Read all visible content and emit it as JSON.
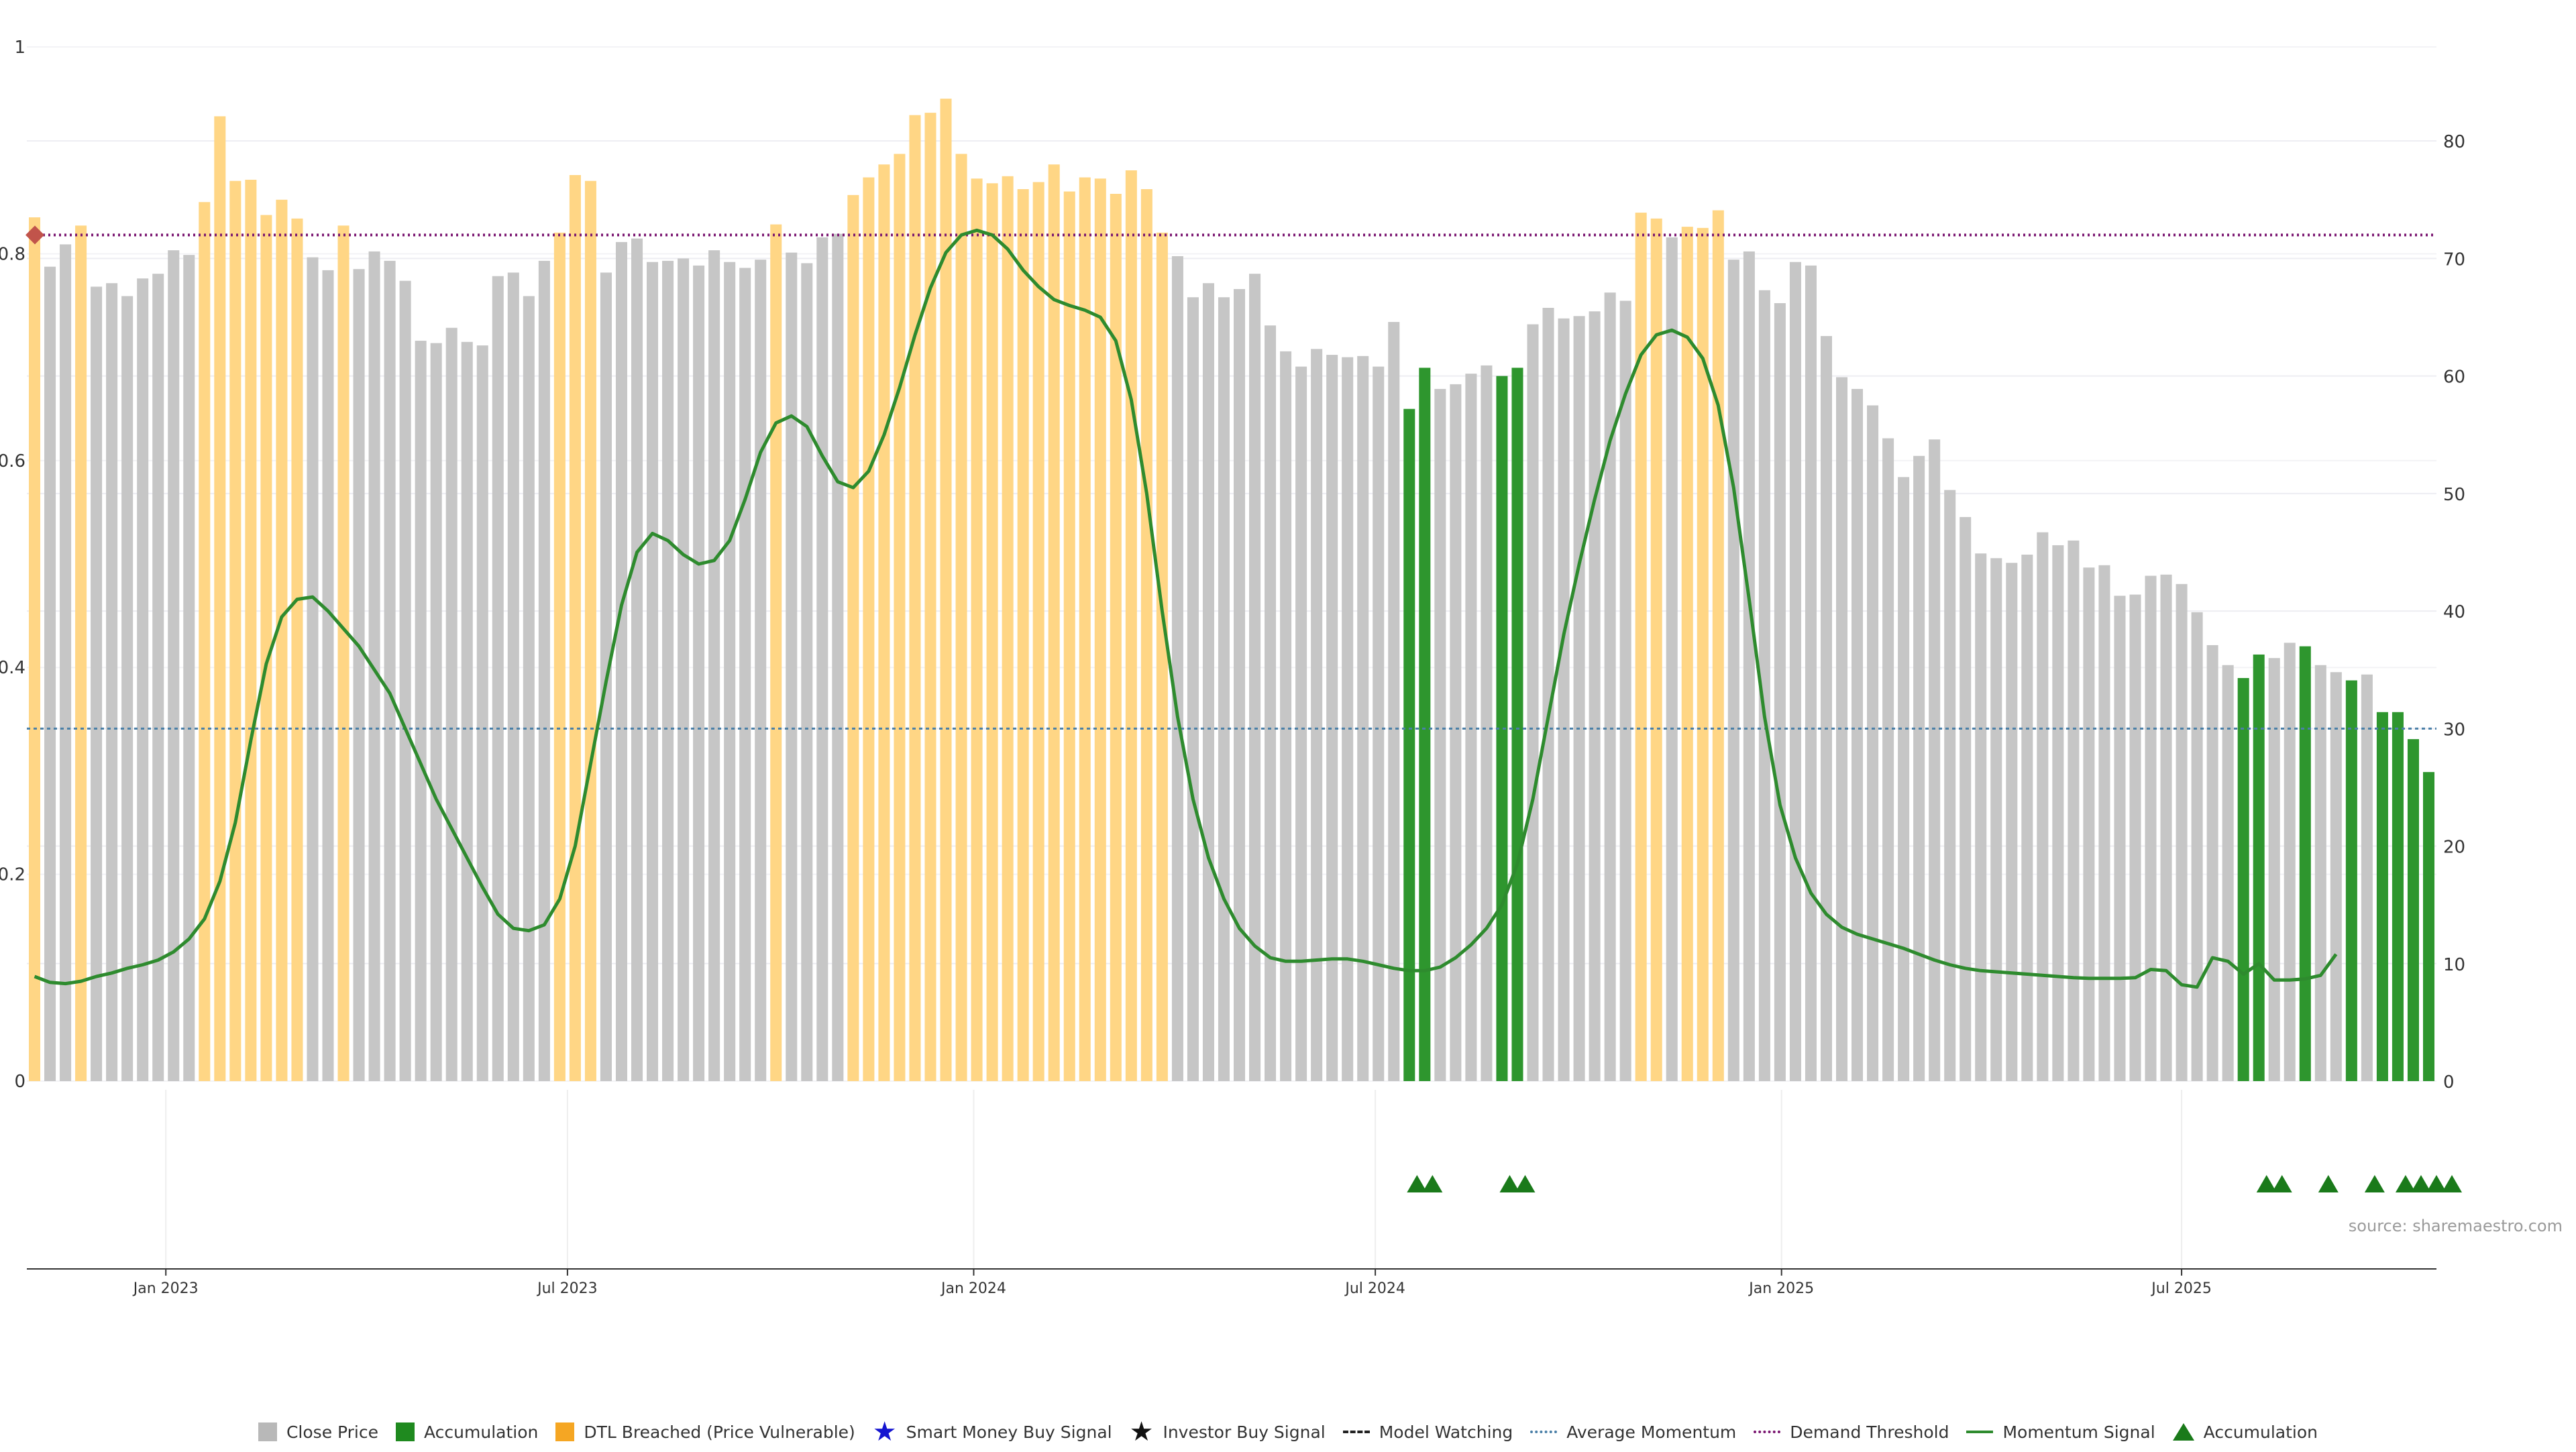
{
  "source": "source: sharemaestro.com",
  "colors": {
    "close": "#c6c6c6",
    "accumulation": "#2e962e",
    "dtl": "#ffd685",
    "momentum": "#2e8b2e",
    "avg_momentum": "#4a7fa7",
    "demand": "#7a1570",
    "marker": "#c1544b"
  },
  "legend": [
    {
      "kind": "square",
      "color": "#b8b8b8",
      "label": "Close Price"
    },
    {
      "kind": "square",
      "color": "#1f8a1f",
      "label": "Accumulation"
    },
    {
      "kind": "square",
      "color": "#f5a623",
      "label": "DTL Breached (Price Vulnerable)"
    },
    {
      "kind": "glyph",
      "glyph": "★",
      "color": "#1515d0",
      "label": "Smart Money Buy Signal"
    },
    {
      "kind": "glyph",
      "glyph": "★",
      "color": "#111111",
      "label": "Investor Buy Signal"
    },
    {
      "kind": "dash",
      "color": "#222222",
      "label": "Model Watching"
    },
    {
      "kind": "dot",
      "color": "#4a7fa7",
      "label": "Average Momentum"
    },
    {
      "kind": "dot",
      "color": "#7a1570",
      "label": "Demand Threshold"
    },
    {
      "kind": "solid",
      "color": "#2e8b2e",
      "label": "Momentum Signal"
    },
    {
      "kind": "triangle",
      "color": "#1a7a1a",
      "label": "Accumulation"
    }
  ],
  "chart_data": {
    "type": "bar",
    "left_axis": {
      "min": 0,
      "max": 1,
      "ticks": [
        "0",
        "0.2",
        "0.4",
        "0.6",
        "0.8",
        "1"
      ]
    },
    "right_axis": {
      "min": 0,
      "max": 88,
      "ticks": [
        "0",
        "10",
        "20",
        "30",
        "40",
        "50",
        "60",
        "70",
        "80"
      ]
    },
    "x_ticks": [
      {
        "index": 8.5,
        "label": "Jan 2023"
      },
      {
        "index": 34.5,
        "label": "Jul 2023"
      },
      {
        "index": 60.8,
        "label": "Jan 2024"
      },
      {
        "index": 86.8,
        "label": "Jul 2024"
      },
      {
        "index": 113.1,
        "label": "Jan 2025"
      },
      {
        "index": 139.0,
        "label": "Jul 2025"
      }
    ],
    "grid": true,
    "demand_threshold": 72,
    "average_momentum": 30,
    "bars": [
      {
        "v": 73.5,
        "s": "dtl"
      },
      {
        "v": 69.3,
        "s": "close"
      },
      {
        "v": 71.2,
        "s": "close"
      },
      {
        "v": 72.8,
        "s": "dtl"
      },
      {
        "v": 67.6,
        "s": "close"
      },
      {
        "v": 67.9,
        "s": "close"
      },
      {
        "v": 66.8,
        "s": "close"
      },
      {
        "v": 68.3,
        "s": "close"
      },
      {
        "v": 68.7,
        "s": "close"
      },
      {
        "v": 70.7,
        "s": "close"
      },
      {
        "v": 70.3,
        "s": "close"
      },
      {
        "v": 74.8,
        "s": "dtl"
      },
      {
        "v": 82.1,
        "s": "dtl"
      },
      {
        "v": 76.6,
        "s": "dtl"
      },
      {
        "v": 76.7,
        "s": "dtl"
      },
      {
        "v": 73.7,
        "s": "dtl"
      },
      {
        "v": 75.0,
        "s": "dtl"
      },
      {
        "v": 73.4,
        "s": "dtl"
      },
      {
        "v": 70.1,
        "s": "close"
      },
      {
        "v": 69.0,
        "s": "close"
      },
      {
        "v": 72.8,
        "s": "dtl"
      },
      {
        "v": 69.1,
        "s": "close"
      },
      {
        "v": 70.6,
        "s": "close"
      },
      {
        "v": 69.8,
        "s": "close"
      },
      {
        "v": 68.1,
        "s": "close"
      },
      {
        "v": 63.0,
        "s": "close"
      },
      {
        "v": 62.8,
        "s": "close"
      },
      {
        "v": 64.1,
        "s": "close"
      },
      {
        "v": 62.9,
        "s": "close"
      },
      {
        "v": 62.6,
        "s": "close"
      },
      {
        "v": 68.5,
        "s": "close"
      },
      {
        "v": 68.8,
        "s": "close"
      },
      {
        "v": 66.8,
        "s": "close"
      },
      {
        "v": 69.8,
        "s": "close"
      },
      {
        "v": 72.2,
        "s": "dtl"
      },
      {
        "v": 77.1,
        "s": "dtl"
      },
      {
        "v": 76.6,
        "s": "dtl"
      },
      {
        "v": 68.8,
        "s": "close"
      },
      {
        "v": 71.4,
        "s": "close"
      },
      {
        "v": 71.7,
        "s": "close"
      },
      {
        "v": 69.7,
        "s": "close"
      },
      {
        "v": 69.8,
        "s": "close"
      },
      {
        "v": 70.0,
        "s": "close"
      },
      {
        "v": 69.4,
        "s": "close"
      },
      {
        "v": 70.7,
        "s": "close"
      },
      {
        "v": 69.7,
        "s": "close"
      },
      {
        "v": 69.2,
        "s": "close"
      },
      {
        "v": 69.9,
        "s": "close"
      },
      {
        "v": 72.9,
        "s": "dtl"
      },
      {
        "v": 70.5,
        "s": "close"
      },
      {
        "v": 69.6,
        "s": "close"
      },
      {
        "v": 71.8,
        "s": "close"
      },
      {
        "v": 72.1,
        "s": "close"
      },
      {
        "v": 75.4,
        "s": "dtl"
      },
      {
        "v": 76.9,
        "s": "dtl"
      },
      {
        "v": 78.0,
        "s": "dtl"
      },
      {
        "v": 78.9,
        "s": "dtl"
      },
      {
        "v": 82.2,
        "s": "dtl"
      },
      {
        "v": 82.4,
        "s": "dtl"
      },
      {
        "v": 83.6,
        "s": "dtl"
      },
      {
        "v": 78.9,
        "s": "dtl"
      },
      {
        "v": 76.8,
        "s": "dtl"
      },
      {
        "v": 76.4,
        "s": "dtl"
      },
      {
        "v": 77.0,
        "s": "dtl"
      },
      {
        "v": 75.9,
        "s": "dtl"
      },
      {
        "v": 76.5,
        "s": "dtl"
      },
      {
        "v": 78.0,
        "s": "dtl"
      },
      {
        "v": 75.7,
        "s": "dtl"
      },
      {
        "v": 76.9,
        "s": "dtl"
      },
      {
        "v": 76.8,
        "s": "dtl"
      },
      {
        "v": 75.5,
        "s": "dtl"
      },
      {
        "v": 77.5,
        "s": "dtl"
      },
      {
        "v": 75.9,
        "s": "dtl"
      },
      {
        "v": 72.2,
        "s": "dtl"
      },
      {
        "v": 70.2,
        "s": "close"
      },
      {
        "v": 66.7,
        "s": "close"
      },
      {
        "v": 67.9,
        "s": "close"
      },
      {
        "v": 66.7,
        "s": "close"
      },
      {
        "v": 67.4,
        "s": "close"
      },
      {
        "v": 68.7,
        "s": "close"
      },
      {
        "v": 64.3,
        "s": "close"
      },
      {
        "v": 62.1,
        "s": "close"
      },
      {
        "v": 60.8,
        "s": "close"
      },
      {
        "v": 62.3,
        "s": "close"
      },
      {
        "v": 61.8,
        "s": "close"
      },
      {
        "v": 61.6,
        "s": "close"
      },
      {
        "v": 61.7,
        "s": "close"
      },
      {
        "v": 60.8,
        "s": "close"
      },
      {
        "v": 64.6,
        "s": "close"
      },
      {
        "v": 57.2,
        "s": "acc"
      },
      {
        "v": 60.7,
        "s": "acc"
      },
      {
        "v": 58.9,
        "s": "close"
      },
      {
        "v": 59.3,
        "s": "close"
      },
      {
        "v": 60.2,
        "s": "close"
      },
      {
        "v": 60.9,
        "s": "close"
      },
      {
        "v": 60.0,
        "s": "acc"
      },
      {
        "v": 60.7,
        "s": "acc"
      },
      {
        "v": 64.4,
        "s": "close"
      },
      {
        "v": 65.8,
        "s": "close"
      },
      {
        "v": 64.9,
        "s": "close"
      },
      {
        "v": 65.1,
        "s": "close"
      },
      {
        "v": 65.5,
        "s": "close"
      },
      {
        "v": 67.1,
        "s": "close"
      },
      {
        "v": 66.4,
        "s": "close"
      },
      {
        "v": 73.9,
        "s": "dtl"
      },
      {
        "v": 73.4,
        "s": "dtl"
      },
      {
        "v": 71.8,
        "s": "close"
      },
      {
        "v": 72.7,
        "s": "dtl"
      },
      {
        "v": 72.6,
        "s": "dtl"
      },
      {
        "v": 74.1,
        "s": "dtl"
      },
      {
        "v": 69.9,
        "s": "close"
      },
      {
        "v": 70.6,
        "s": "close"
      },
      {
        "v": 67.3,
        "s": "close"
      },
      {
        "v": 66.2,
        "s": "close"
      },
      {
        "v": 69.7,
        "s": "close"
      },
      {
        "v": 69.4,
        "s": "close"
      },
      {
        "v": 63.4,
        "s": "close"
      },
      {
        "v": 59.9,
        "s": "close"
      },
      {
        "v": 58.9,
        "s": "close"
      },
      {
        "v": 57.5,
        "s": "close"
      },
      {
        "v": 54.7,
        "s": "close"
      },
      {
        "v": 51.4,
        "s": "close"
      },
      {
        "v": 53.2,
        "s": "close"
      },
      {
        "v": 54.6,
        "s": "close"
      },
      {
        "v": 50.3,
        "s": "close"
      },
      {
        "v": 48.0,
        "s": "close"
      },
      {
        "v": 44.9,
        "s": "close"
      },
      {
        "v": 44.5,
        "s": "close"
      },
      {
        "v": 44.1,
        "s": "close"
      },
      {
        "v": 44.8,
        "s": "close"
      },
      {
        "v": 46.7,
        "s": "close"
      },
      {
        "v": 45.6,
        "s": "close"
      },
      {
        "v": 46.0,
        "s": "close"
      },
      {
        "v": 43.7,
        "s": "close"
      },
      {
        "v": 43.9,
        "s": "close"
      },
      {
        "v": 41.3,
        "s": "close"
      },
      {
        "v": 41.4,
        "s": "close"
      },
      {
        "v": 43.0,
        "s": "close"
      },
      {
        "v": 43.1,
        "s": "close"
      },
      {
        "v": 42.3,
        "s": "close"
      },
      {
        "v": 39.9,
        "s": "close"
      },
      {
        "v": 37.1,
        "s": "close"
      },
      {
        "v": 35.4,
        "s": "close"
      },
      {
        "v": 34.3,
        "s": "acc"
      },
      {
        "v": 36.3,
        "s": "acc"
      },
      {
        "v": 36.0,
        "s": "close"
      },
      {
        "v": 37.3,
        "s": "close"
      },
      {
        "v": 37.0,
        "s": "acc"
      },
      {
        "v": 35.4,
        "s": "close"
      },
      {
        "v": 34.8,
        "s": "close"
      },
      {
        "v": 34.1,
        "s": "acc"
      },
      {
        "v": 34.6,
        "s": "close"
      },
      {
        "v": 31.4,
        "s": "acc"
      },
      {
        "v": 31.4,
        "s": "acc"
      },
      {
        "v": 29.1,
        "s": "acc"
      },
      {
        "v": 26.3,
        "s": "acc"
      }
    ],
    "momentum_signal": [
      [
        0,
        8.9
      ],
      [
        1,
        8.4
      ],
      [
        2,
        8.3
      ],
      [
        3,
        8.5
      ],
      [
        4,
        8.9
      ],
      [
        5,
        9.2
      ],
      [
        6,
        9.6
      ],
      [
        7,
        9.9
      ],
      [
        8,
        10.3
      ],
      [
        9,
        11.0
      ],
      [
        10,
        12.1
      ],
      [
        11,
        13.8
      ],
      [
        12,
        17.0
      ],
      [
        13,
        22.0
      ],
      [
        14,
        29.0
      ],
      [
        15,
        35.5
      ],
      [
        16,
        39.5
      ],
      [
        17,
        41.0
      ],
      [
        18,
        41.2
      ],
      [
        19,
        40.0
      ],
      [
        20,
        38.5
      ],
      [
        21,
        37.0
      ],
      [
        22,
        35.0
      ],
      [
        23,
        33.0
      ],
      [
        24,
        30.0
      ],
      [
        25,
        27.0
      ],
      [
        26,
        24.0
      ],
      [
        27,
        21.5
      ],
      [
        28,
        19.0
      ],
      [
        29,
        16.5
      ],
      [
        30,
        14.2
      ],
      [
        31,
        13.0
      ],
      [
        32,
        12.8
      ],
      [
        33,
        13.3
      ],
      [
        34,
        15.5
      ],
      [
        35,
        20.0
      ],
      [
        36,
        27.0
      ],
      [
        37,
        34.0
      ],
      [
        38,
        40.5
      ],
      [
        39,
        45.0
      ],
      [
        40,
        46.6
      ],
      [
        41,
        46.0
      ],
      [
        42,
        44.8
      ],
      [
        43,
        44.0
      ],
      [
        44,
        44.3
      ],
      [
        45,
        46.0
      ],
      [
        46,
        49.5
      ],
      [
        47,
        53.5
      ],
      [
        48,
        56.0
      ],
      [
        49,
        56.6
      ],
      [
        50,
        55.7
      ],
      [
        51,
        53.2
      ],
      [
        52,
        51.0
      ],
      [
        53,
        50.5
      ],
      [
        54,
        51.9
      ],
      [
        55,
        55.0
      ],
      [
        56,
        59.0
      ],
      [
        57,
        63.5
      ],
      [
        58,
        67.5
      ],
      [
        59,
        70.5
      ],
      [
        60,
        72.0
      ],
      [
        61,
        72.4
      ],
      [
        62,
        72.0
      ],
      [
        63,
        70.8
      ],
      [
        64,
        69.0
      ],
      [
        65,
        67.6
      ],
      [
        66,
        66.5
      ],
      [
        67,
        66.0
      ],
      [
        68,
        65.6
      ],
      [
        69,
        65.0
      ],
      [
        70,
        63.0
      ],
      [
        71,
        58.0
      ],
      [
        72,
        50.0
      ],
      [
        73,
        40.0
      ],
      [
        74,
        31.0
      ],
      [
        75,
        24.0
      ],
      [
        76,
        19.0
      ],
      [
        77,
        15.5
      ],
      [
        78,
        13.0
      ],
      [
        79,
        11.5
      ],
      [
        80,
        10.5
      ],
      [
        81,
        10.2
      ],
      [
        82,
        10.2
      ],
      [
        83,
        10.3
      ],
      [
        84,
        10.4
      ],
      [
        85,
        10.4
      ],
      [
        86,
        10.2
      ],
      [
        87,
        9.9
      ],
      [
        88,
        9.6
      ],
      [
        89,
        9.4
      ],
      [
        90,
        9.4
      ],
      [
        91,
        9.7
      ],
      [
        92,
        10.5
      ],
      [
        93,
        11.6
      ],
      [
        94,
        13.0
      ],
      [
        95,
        15.0
      ],
      [
        96,
        18.5
      ],
      [
        97,
        24.0
      ],
      [
        98,
        31.0
      ],
      [
        99,
        38.0
      ],
      [
        100,
        44.0
      ],
      [
        101,
        49.5
      ],
      [
        102,
        54.5
      ],
      [
        103,
        58.5
      ],
      [
        104,
        61.8
      ],
      [
        105,
        63.5
      ],
      [
        106,
        63.9
      ],
      [
        107,
        63.3
      ],
      [
        108,
        61.5
      ],
      [
        109,
        57.5
      ],
      [
        110,
        50.5
      ],
      [
        111,
        41.0
      ],
      [
        112,
        31.0
      ],
      [
        113,
        23.5
      ],
      [
        114,
        19.0
      ],
      [
        115,
        16.0
      ],
      [
        116,
        14.2
      ],
      [
        117,
        13.1
      ],
      [
        118,
        12.5
      ],
      [
        119,
        12.1
      ],
      [
        120,
        11.7
      ],
      [
        121,
        11.3
      ],
      [
        122,
        10.8
      ],
      [
        123,
        10.3
      ],
      [
        124,
        9.9
      ],
      [
        125,
        9.6
      ],
      [
        126,
        9.4
      ],
      [
        127,
        9.3
      ],
      [
        128,
        9.2
      ],
      [
        129,
        9.1
      ],
      [
        130,
        9.0
      ],
      [
        131,
        8.9
      ],
      [
        132,
        8.8
      ],
      [
        133,
        8.75
      ],
      [
        134,
        8.75
      ],
      [
        135,
        8.75
      ],
      [
        136,
        8.8
      ],
      [
        137,
        9.5
      ],
      [
        138,
        9.4
      ],
      [
        139,
        8.2
      ],
      [
        140,
        8.0
      ],
      [
        141,
        10.5
      ],
      [
        142,
        10.2
      ],
      [
        143,
        9.1
      ],
      [
        144,
        10.0
      ],
      [
        145,
        8.6
      ],
      [
        146,
        8.6
      ],
      [
        147,
        8.7
      ],
      [
        148,
        9.0
      ],
      [
        149,
        10.8
      ]
    ],
    "accumulation_markers": [
      89.5,
      90.5,
      95.5,
      96.5,
      144.5,
      145.5,
      148.5,
      151.5,
      153.5,
      154.5,
      155.5,
      156.5
    ]
  }
}
